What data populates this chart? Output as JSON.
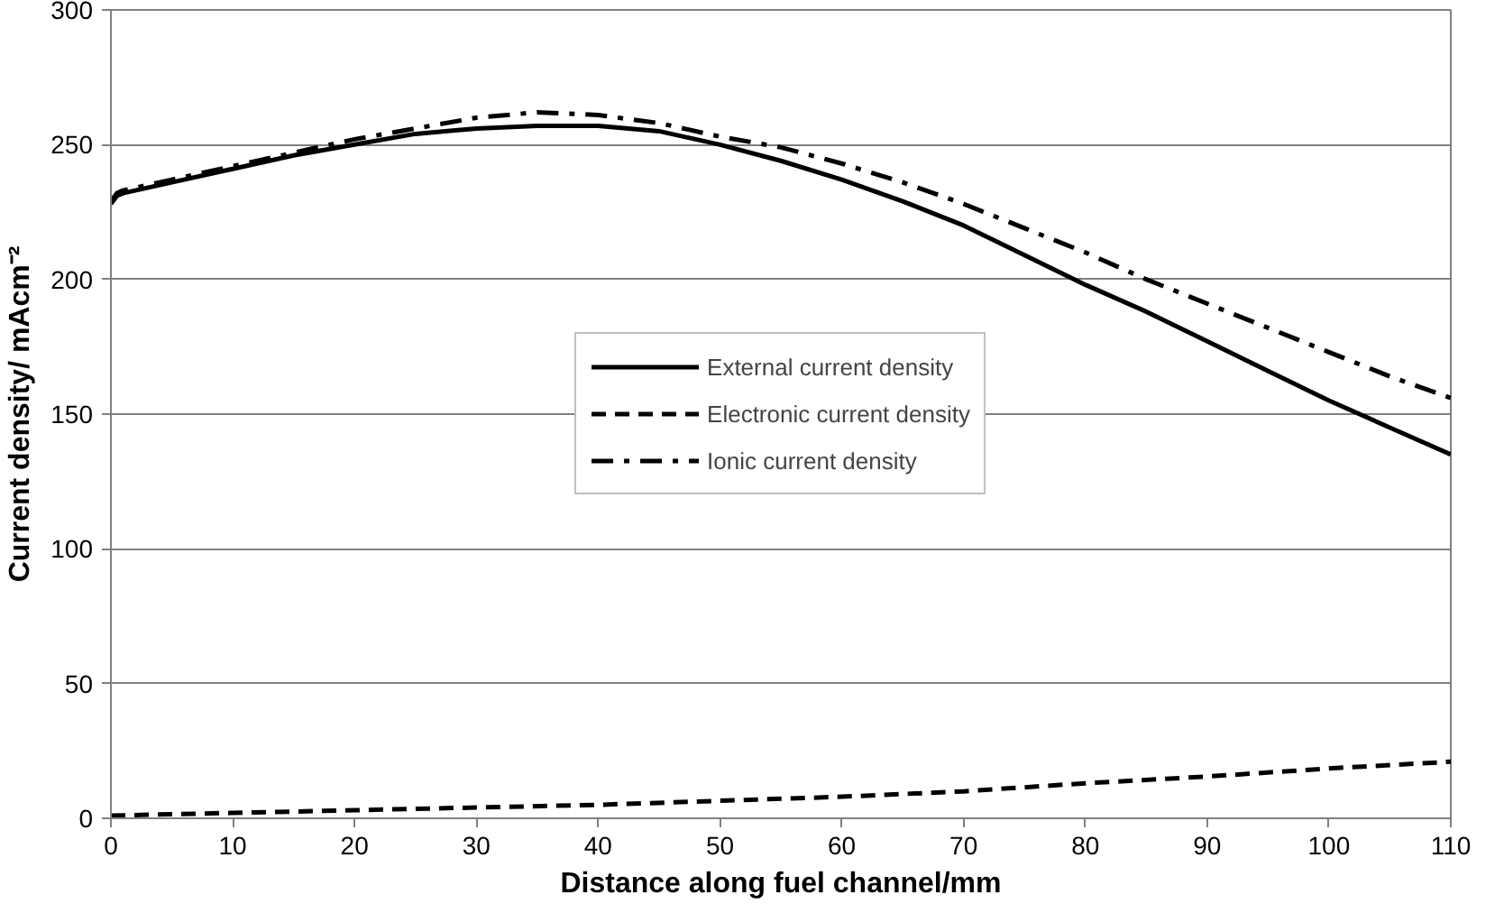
{
  "chart_data": {
    "type": "line",
    "xlabel": "Distance along fuel channel/mm",
    "ylabel": "Current density/ mAcm⁻²",
    "xlim": [
      0,
      110
    ],
    "ylim": [
      0,
      300
    ],
    "xticks": [
      0,
      10,
      20,
      30,
      40,
      50,
      60,
      70,
      80,
      90,
      100,
      110
    ],
    "yticks": [
      0,
      50,
      100,
      150,
      200,
      250,
      300
    ],
    "grid": "y",
    "legend": "center",
    "marker": "none",
    "series": [
      {
        "name": "External current density",
        "color": "#000000",
        "line_style": "solid",
        "x": [
          0,
          0.5,
          1,
          2,
          5,
          10,
          15,
          20,
          25,
          30,
          35,
          40,
          45,
          50,
          55,
          60,
          65,
          70,
          75,
          80,
          85,
          90,
          95,
          100,
          105,
          110
        ],
        "values": [
          228,
          231,
          232,
          233,
          236,
          241,
          246,
          250,
          254,
          256,
          257,
          257,
          255,
          250,
          244,
          237,
          229,
          220,
          209,
          198,
          188,
          177,
          166,
          155,
          145,
          135
        ]
      },
      {
        "name": "Electronic current density",
        "color": "#000000",
        "line_style": "dashed",
        "x": [
          0,
          10,
          20,
          30,
          40,
          50,
          60,
          70,
          80,
          90,
          100,
          110
        ],
        "values": [
          1,
          2,
          3,
          4,
          5,
          6.5,
          8,
          10,
          13,
          15.5,
          18.5,
          21
        ]
      },
      {
        "name": "Ionic current density",
        "color": "#000000",
        "line_style": "dashdot",
        "x": [
          0,
          0.5,
          1,
          2,
          5,
          10,
          15,
          20,
          25,
          30,
          35,
          40,
          45,
          50,
          55,
          60,
          65,
          70,
          75,
          80,
          85,
          90,
          95,
          100,
          105,
          110
        ],
        "values": [
          229,
          232,
          233,
          234,
          237,
          242,
          247,
          252,
          256,
          260,
          262,
          261,
          258,
          253,
          249,
          243,
          236,
          228,
          219,
          210,
          200,
          191,
          182,
          173,
          164,
          156
        ]
      }
    ]
  }
}
